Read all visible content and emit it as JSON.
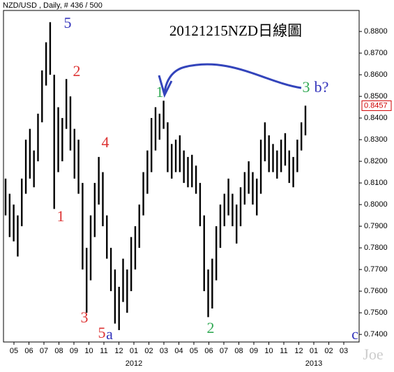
{
  "chart_data": {
    "type": "range-bar",
    "header": "NZD/USD , Daily, # 436 / 500",
    "title": "20121215NZD日線圖",
    "watermark": "Joe",
    "color": "#000000",
    "ylim": [
      0.7365,
      0.8897
    ],
    "yticks": [
      {
        "value": 0.74,
        "label": "0.7400"
      },
      {
        "value": 0.75,
        "label": "0.7500"
      },
      {
        "value": 0.76,
        "label": "0.7600"
      },
      {
        "value": 0.77,
        "label": "0.7700"
      },
      {
        "value": 0.78,
        "label": "0.7800"
      },
      {
        "value": 0.79,
        "label": "0.7900"
      },
      {
        "value": 0.8,
        "label": "0.8000"
      },
      {
        "value": 0.81,
        "label": "0.8100"
      },
      {
        "value": 0.82,
        "label": "0.8200"
      },
      {
        "value": 0.83,
        "label": "0.8300"
      },
      {
        "value": 0.84,
        "label": "0.8400"
      },
      {
        "value": 0.85,
        "label": "0.8500"
      },
      {
        "value": 0.86,
        "label": "0.8600"
      },
      {
        "value": 0.87,
        "label": "0.8700"
      },
      {
        "value": 0.88,
        "label": "0.8800"
      }
    ],
    "last_price": 0.8457,
    "last_price_color": "#d00000",
    "months": [
      "05",
      "06",
      "07",
      "08",
      "09",
      "10",
      "11",
      "12",
      "01",
      "02",
      "03",
      "04",
      "05",
      "06",
      "07",
      "08",
      "09",
      "10",
      "11",
      "12",
      "01",
      "02",
      "03"
    ],
    "years": [
      "2012",
      "2013"
    ],
    "high": [
      0.812,
      0.805,
      0.8,
      0.795,
      0.812,
      0.83,
      0.835,
      0.825,
      0.842,
      0.862,
      0.875,
      0.8843,
      0.86,
      0.845,
      0.84,
      0.858,
      0.85,
      0.835,
      0.83,
      0.81,
      0.78,
      0.795,
      0.81,
      0.822,
      0.815,
      0.795,
      0.78,
      0.77,
      0.762,
      0.775,
      0.77,
      0.785,
      0.79,
      0.8,
      0.815,
      0.825,
      0.84,
      0.845,
      0.842,
      0.848,
      0.838,
      0.828,
      0.83,
      0.832,
      0.825,
      0.822,
      0.823,
      0.818,
      0.81,
      0.795,
      0.77,
      0.775,
      0.79,
      0.8,
      0.805,
      0.812,
      0.805,
      0.8,
      0.808,
      0.815,
      0.82,
      0.815,
      0.812,
      0.83,
      0.838,
      0.832,
      0.828,
      0.825,
      0.83,
      0.833,
      0.825,
      0.822,
      0.83,
      0.838,
      0.8457
    ],
    "low": [
      0.795,
      0.785,
      0.783,
      0.776,
      0.79,
      0.805,
      0.812,
      0.808,
      0.82,
      0.838,
      0.855,
      0.86,
      0.798,
      0.815,
      0.82,
      0.835,
      0.825,
      0.812,
      0.805,
      0.77,
      0.75,
      0.765,
      0.785,
      0.8,
      0.79,
      0.775,
      0.76,
      0.745,
      0.742,
      0.755,
      0.75,
      0.76,
      0.77,
      0.78,
      0.795,
      0.805,
      0.815,
      0.825,
      0.83,
      0.835,
      0.815,
      0.812,
      0.815,
      0.815,
      0.81,
      0.808,
      0.808,
      0.805,
      0.79,
      0.76,
      0.748,
      0.752,
      0.765,
      0.78,
      0.79,
      0.795,
      0.79,
      0.782,
      0.79,
      0.8,
      0.805,
      0.8,
      0.795,
      0.805,
      0.82,
      0.815,
      0.815,
      0.812,
      0.815,
      0.818,
      0.81,
      0.808,
      0.815,
      0.825,
      0.832
    ],
    "annotations": [
      {
        "text": "5",
        "color": "#3333bb"
      },
      {
        "text": "2",
        "color": "#dd3333"
      },
      {
        "text": "1",
        "color": "#dd3333"
      },
      {
        "text": "4",
        "color": "#dd3333"
      },
      {
        "text": "3",
        "color": "#dd3333"
      },
      {
        "text": "5",
        "color": "#dd3333"
      },
      {
        "text": "a",
        "color": "#3333bb"
      },
      {
        "text": "1",
        "color": "#33aa55"
      },
      {
        "text": "2",
        "color": "#33aa55"
      },
      {
        "text": "3",
        "color": "#33aa55"
      },
      {
        "text": "b?",
        "color": "#3333bb"
      },
      {
        "text": "c",
        "color": "#3333bb"
      }
    ],
    "arrow_color": "#3344bb"
  }
}
